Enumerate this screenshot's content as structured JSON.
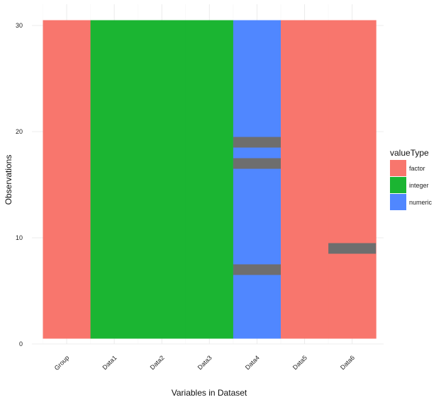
{
  "chart_data": {
    "type": "heatmap",
    "title": "",
    "xlabel": "Variables in Dataset",
    "ylabel": "Observations",
    "ylim": [
      0,
      30
    ],
    "yticks": [
      0,
      10,
      20,
      30
    ],
    "grid": true,
    "legend_position": "right",
    "legend_title": "valueType",
    "categories": [
      "Group",
      "Data1",
      "Data2",
      "Data3",
      "Data4",
      "Data5",
      "Data6"
    ],
    "value_types": [
      {
        "name": "factor",
        "color": "#F8766D"
      },
      {
        "name": "integer",
        "color": "#1BB532"
      },
      {
        "name": "numeric",
        "color": "#5087FF"
      }
    ],
    "missing_color": "#6E6E6E",
    "column_types": [
      "factor",
      "integer",
      "integer",
      "integer",
      "numeric",
      "factor",
      "factor"
    ],
    "missing": [
      {
        "column": "Data4",
        "rows": [
          7,
          17,
          19
        ]
      },
      {
        "column": "Data6",
        "rows": [
          9
        ]
      }
    ]
  }
}
